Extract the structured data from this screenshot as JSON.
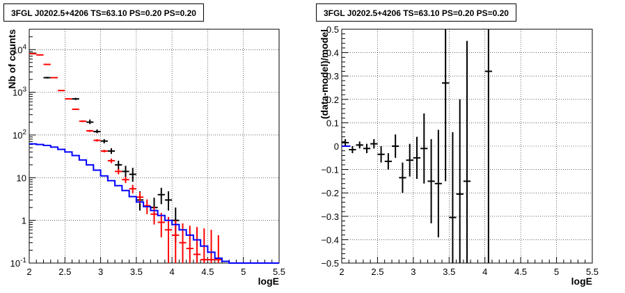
{
  "chart_data": [
    {
      "type": "histogram",
      "title": "3FGL J0202.5+4206 TS=63.10 PS=0.20 PS=0.20",
      "xlabel": "logE",
      "ylabel": "Nb of counts",
      "xlim": [
        2,
        5.5
      ],
      "ylim": [
        0.1,
        30000
      ],
      "yscale": "log",
      "grid": true,
      "x_ticks": [
        {
          "v": 2,
          "label": "2"
        },
        {
          "v": 2.5,
          "label": "2.5"
        },
        {
          "v": 3,
          "label": "3"
        },
        {
          "v": 3.5,
          "label": "3.5"
        },
        {
          "v": 4,
          "label": "4"
        },
        {
          "v": 4.5,
          "label": "4.5"
        },
        {
          "v": 5,
          "label": "5"
        },
        {
          "v": 5.5,
          "label": "5.5"
        }
      ],
      "y_ticks": [
        {
          "v": 0.1,
          "base": "10",
          "exp": "-1"
        },
        {
          "v": 1,
          "base": "1",
          "exp": ""
        },
        {
          "v": 10,
          "base": "10",
          "exp": ""
        },
        {
          "v": 100,
          "base": "10",
          "exp": "2"
        },
        {
          "v": 1000,
          "base": "10",
          "exp": "3"
        },
        {
          "v": 10000,
          "base": "10",
          "exp": "4"
        }
      ],
      "bin_width": 0.1,
      "series": [
        {
          "kind": "points",
          "color": "#000000",
          "points": [
            {
              "x": 2.05,
              "y": 8200,
              "lo": 8000,
              "hi": 8400
            },
            {
              "x": 2.25,
              "y": 2200,
              "lo": 2100,
              "hi": 2300
            },
            {
              "x": 2.65,
              "y": 700,
              "lo": 660,
              "hi": 740
            },
            {
              "x": 2.85,
              "y": 200,
              "lo": 180,
              "hi": 230
            },
            {
              "x": 2.95,
              "y": 120,
              "lo": 110,
              "hi": 135
            },
            {
              "x": 3.05,
              "y": 72,
              "lo": 64,
              "hi": 80
            },
            {
              "x": 3.15,
              "y": 42,
              "lo": 36,
              "hi": 49
            },
            {
              "x": 3.25,
              "y": 20,
              "lo": 15,
              "hi": 25
            },
            {
              "x": 3.35,
              "y": 14,
              "lo": 10,
              "hi": 19
            },
            {
              "x": 3.45,
              "y": 12,
              "lo": 8,
              "hi": 17
            },
            {
              "x": 3.55,
              "y": 3,
              "lo": 1.7,
              "hi": 4.8
            },
            {
              "x": 3.75,
              "y": 2,
              "lo": 0.9,
              "hi": 3.4
            },
            {
              "x": 3.85,
              "y": 4,
              "lo": 2.4,
              "hi": 5.8
            },
            {
              "x": 3.95,
              "y": 3,
              "lo": 1.7,
              "hi": 4.8
            },
            {
              "x": 4.05,
              "y": 1,
              "lo": 0.3,
              "hi": 2.0
            }
          ]
        },
        {
          "kind": "points",
          "color": "#ff0000",
          "points": [
            {
              "x": 2.05,
              "y": 8000,
              "lo": 7900,
              "hi": 8100
            },
            {
              "x": 2.15,
              "y": 7500,
              "lo": 7400,
              "hi": 7600
            },
            {
              "x": 2.25,
              "y": 4500,
              "lo": 4420,
              "hi": 4580
            },
            {
              "x": 2.35,
              "y": 2200,
              "lo": 2150,
              "hi": 2250
            },
            {
              "x": 2.45,
              "y": 1100,
              "lo": 1070,
              "hi": 1130
            },
            {
              "x": 2.55,
              "y": 700,
              "lo": 680,
              "hi": 720
            },
            {
              "x": 2.65,
              "y": 400,
              "lo": 385,
              "hi": 415
            },
            {
              "x": 2.75,
              "y": 210,
              "lo": 200,
              "hi": 220
            },
            {
              "x": 2.85,
              "y": 125,
              "lo": 118,
              "hi": 132
            },
            {
              "x": 2.95,
              "y": 75,
              "lo": 70,
              "hi": 80
            },
            {
              "x": 3.05,
              "y": 42,
              "lo": 39,
              "hi": 45
            },
            {
              "x": 3.15,
              "y": 25,
              "lo": 22,
              "hi": 28
            },
            {
              "x": 3.25,
              "y": 14,
              "lo": 12,
              "hi": 16
            },
            {
              "x": 3.35,
              "y": 9,
              "lo": 7.5,
              "hi": 10.5
            },
            {
              "x": 3.45,
              "y": 5.5,
              "lo": 4.3,
              "hi": 6.8
            },
            {
              "x": 3.55,
              "y": 3.5,
              "lo": 2.5,
              "hi": 4.6
            },
            {
              "x": 3.65,
              "y": 2.2,
              "lo": 1.4,
              "hi": 3.1
            },
            {
              "x": 3.75,
              "y": 1.4,
              "lo": 0.8,
              "hi": 2.1
            },
            {
              "x": 3.85,
              "y": 0.9,
              "lo": 0.4,
              "hi": 1.5
            },
            {
              "x": 3.95,
              "y": 0.6,
              "lo": 0.1,
              "hi": 1.2
            },
            {
              "x": 4.05,
              "y": 0.45,
              "lo": 0.1,
              "hi": 1.0
            },
            {
              "x": 4.15,
              "y": 0.3,
              "lo": 0.1,
              "hi": 0.85
            },
            {
              "x": 4.25,
              "y": 0.22,
              "lo": 0.1,
              "hi": 0.75
            },
            {
              "x": 4.35,
              "y": 0.16,
              "lo": 0.1,
              "hi": 0.7
            },
            {
              "x": 4.45,
              "y": 0.12,
              "lo": 0.1,
              "hi": 0.65
            },
            {
              "x": 4.55,
              "y": 0.12,
              "lo": 0.1,
              "hi": 0.6
            },
            {
              "x": 4.65,
              "y": 0.12,
              "lo": 0.1,
              "hi": 0.45
            }
          ]
        },
        {
          "kind": "step",
          "color": "#0000ff",
          "edges_start": 2.0,
          "values": [
            62,
            60,
            57,
            52,
            46,
            40,
            33,
            26,
            20,
            15,
            11,
            8.5,
            6.5,
            5.0,
            3.6,
            2.7,
            2.1,
            1.7,
            1.3,
            1.0,
            0.8,
            0.6,
            0.45,
            0.35,
            0.25,
            0.18,
            0.13,
            0.11,
            0.1,
            0.1,
            0.1,
            0.1,
            0.1,
            0.1,
            0.1
          ]
        }
      ]
    },
    {
      "type": "scatter",
      "title": "3FGL J0202.5+4206 TS=63.10 PS=0.20 PS=0.20",
      "xlabel": "logE",
      "ylabel": "(data-model)/model",
      "xlim": [
        2,
        5.5
      ],
      "ylim": [
        -0.5,
        0.5
      ],
      "grid": true,
      "x_ticks": [
        {
          "v": 2,
          "label": "2"
        },
        {
          "v": 2.5,
          "label": "2.5"
        },
        {
          "v": 3,
          "label": "3"
        },
        {
          "v": 3.5,
          "label": "3.5"
        },
        {
          "v": 4,
          "label": "4"
        },
        {
          "v": 4.5,
          "label": "4.5"
        },
        {
          "v": 5,
          "label": "5"
        },
        {
          "v": 5.5,
          "label": "5.5"
        }
      ],
      "y_ticks": [
        {
          "v": -0.5,
          "label": "−0.5"
        },
        {
          "v": -0.4,
          "label": "−0.4"
        },
        {
          "v": -0.3,
          "label": "−0.3"
        },
        {
          "v": -0.2,
          "label": "−0.2"
        },
        {
          "v": -0.1,
          "label": "−0.1"
        },
        {
          "v": 0,
          "label": "0"
        },
        {
          "v": 0.1,
          "label": "0.1"
        },
        {
          "v": 0.2,
          "label": "0.2"
        },
        {
          "v": 0.3,
          "label": "0.3"
        },
        {
          "v": 0.4,
          "label": "0.4"
        },
        {
          "v": 0.5,
          "label": "0.5"
        }
      ],
      "bin_width": 0.1,
      "series": [
        {
          "kind": "points",
          "color": "#000000",
          "points": [
            {
              "x": 2.05,
              "y": 0.015,
              "lo": 0.0,
              "hi": 0.03
            },
            {
              "x": 2.15,
              "y": -0.015,
              "lo": -0.03,
              "hi": 0.0
            },
            {
              "x": 2.25,
              "y": 0.005,
              "lo": -0.01,
              "hi": 0.02
            },
            {
              "x": 2.35,
              "y": -0.01,
              "lo": -0.03,
              "hi": 0.01
            },
            {
              "x": 2.45,
              "y": 0.01,
              "lo": -0.01,
              "hi": 0.03
            },
            {
              "x": 2.55,
              "y": -0.035,
              "lo": -0.07,
              "hi": 0.0
            },
            {
              "x": 2.65,
              "y": -0.065,
              "lo": -0.1,
              "hi": -0.03
            },
            {
              "x": 2.75,
              "y": 0.0,
              "lo": -0.05,
              "hi": 0.05
            },
            {
              "x": 2.85,
              "y": -0.135,
              "lo": -0.2,
              "hi": -0.07
            },
            {
              "x": 2.95,
              "y": -0.06,
              "lo": -0.13,
              "hi": 0.01
            },
            {
              "x": 3.05,
              "y": -0.05,
              "lo": -0.14,
              "hi": 0.04
            },
            {
              "x": 3.15,
              "y": -0.01,
              "lo": -0.16,
              "hi": 0.14
            },
            {
              "x": 3.25,
              "y": -0.15,
              "lo": -0.33,
              "hi": 0.03
            },
            {
              "x": 3.35,
              "y": -0.16,
              "lo": -0.39,
              "hi": 0.07
            },
            {
              "x": 3.45,
              "y": 0.27,
              "lo": -0.15,
              "hi": 0.5
            },
            {
              "x": 3.55,
              "y": -0.305,
              "lo": -0.5,
              "hi": 0.06
            },
            {
              "x": 3.65,
              "y": -0.205,
              "lo": -0.5,
              "hi": 0.2
            },
            {
              "x": 3.75,
              "y": -0.15,
              "lo": -0.5,
              "hi": 0.45
            },
            {
              "x": 4.05,
              "y": 0.32,
              "lo": -0.5,
              "hi": 0.5
            }
          ]
        },
        {
          "kind": "line",
          "color": "#0000ff",
          "x": [
            2.0,
            2.12
          ],
          "y": [
            0.0,
            0.0
          ]
        }
      ]
    }
  ]
}
